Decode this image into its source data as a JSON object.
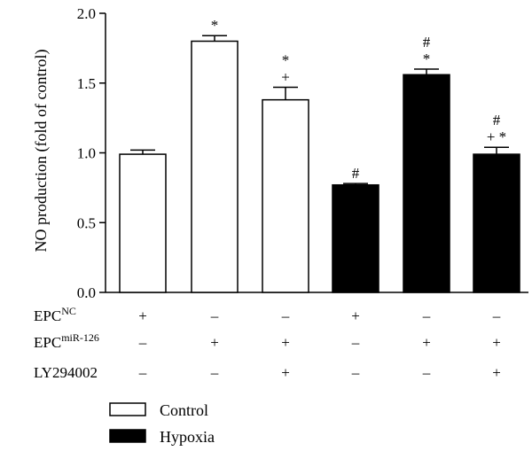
{
  "chart_data": {
    "type": "bar",
    "title": "",
    "xlabel": "",
    "ylabel": "NO production (fold of control)",
    "ylim": [
      0,
      2.0
    ],
    "yticks": [
      "0.0",
      "0.5",
      "1.0",
      "1.5",
      "2.0"
    ],
    "grid": false,
    "legend_position": "bottom-left",
    "legend": [
      {
        "label": "Control",
        "color": "#ffffff"
      },
      {
        "label": "Hypoxia",
        "color": "#000000"
      }
    ],
    "bars": [
      {
        "group": "Control",
        "value": 0.99,
        "error": 0.03,
        "annotation": []
      },
      {
        "group": "Control",
        "value": 1.8,
        "error": 0.04,
        "annotation": [
          "*"
        ]
      },
      {
        "group": "Control",
        "value": 1.38,
        "error": 0.09,
        "annotation": [
          "*",
          "+"
        ]
      },
      {
        "group": "Hypoxia",
        "value": 0.77,
        "error": 0.01,
        "annotation": [
          "#"
        ]
      },
      {
        "group": "Hypoxia",
        "value": 1.56,
        "error": 0.04,
        "annotation": [
          "#",
          "*"
        ]
      },
      {
        "group": "Hypoxia",
        "value": 0.99,
        "error": 0.05,
        "annotation": [
          "#",
          "+ *"
        ]
      }
    ],
    "conditions": [
      {
        "label": "EPC",
        "sup": "NC",
        "signs": [
          "+",
          "–",
          "–",
          "+",
          "–",
          "–"
        ]
      },
      {
        "label": "EPC",
        "sup": "miR-126",
        "signs": [
          "–",
          "+",
          "+",
          "–",
          "+",
          "+"
        ]
      },
      {
        "label": "LY294002",
        "sup": "",
        "signs": [
          "–",
          "–",
          "+",
          "–",
          "–",
          "+"
        ]
      }
    ]
  }
}
